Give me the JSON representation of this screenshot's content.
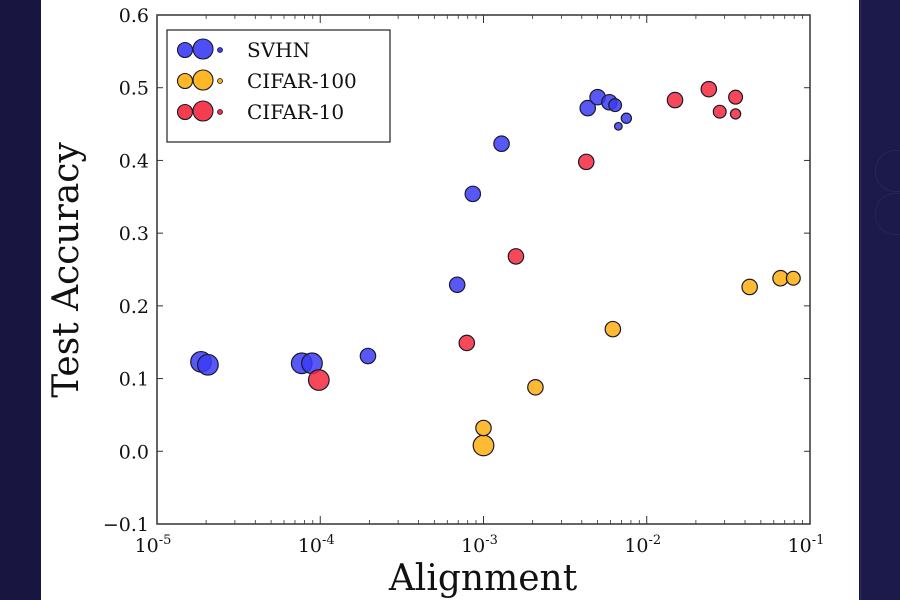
{
  "chart_data": {
    "type": "scatter",
    "title": "",
    "xlabel": "Alignment",
    "ylabel": "Test Accuracy",
    "xscale": "log",
    "xlim": [
      1e-05,
      0.1
    ],
    "ylim": [
      -0.1,
      0.6
    ],
    "x_ticks": [
      {
        "value": 1e-05,
        "base": "10",
        "exp": "-5"
      },
      {
        "value": 0.0001,
        "base": "10",
        "exp": "-4"
      },
      {
        "value": 0.001,
        "base": "10",
        "exp": "-3"
      },
      {
        "value": 0.01,
        "base": "10",
        "exp": "-2"
      },
      {
        "value": 0.1,
        "base": "10",
        "exp": "-1"
      }
    ],
    "y_ticks": [
      {
        "value": -0.1,
        "label": "−0.1"
      },
      {
        "value": 0.0,
        "label": "0.0"
      },
      {
        "value": 0.1,
        "label": "0.1"
      },
      {
        "value": 0.2,
        "label": "0.2"
      },
      {
        "value": 0.3,
        "label": "0.3"
      },
      {
        "value": 0.4,
        "label": "0.4"
      },
      {
        "value": 0.5,
        "label": "0.5"
      },
      {
        "value": 0.6,
        "label": "0.6"
      }
    ],
    "grid": false,
    "legend_position": "top-left",
    "series": [
      {
        "name": "SVHN",
        "color": "#3b3bf5",
        "points": [
          {
            "x": 1.86e-05,
            "y": 0.123,
            "size": 3
          },
          {
            "x": 2.05e-05,
            "y": 0.119,
            "size": 3
          },
          {
            "x": 7.7e-05,
            "y": 0.121,
            "size": 3
          },
          {
            "x": 8.9e-05,
            "y": 0.121,
            "size": 3
          },
          {
            "x": 0.000196,
            "y": 0.131,
            "size": 2
          },
          {
            "x": 0.00069,
            "y": 0.229,
            "size": 2
          },
          {
            "x": 0.00086,
            "y": 0.354,
            "size": 2
          },
          {
            "x": 0.00129,
            "y": 0.423,
            "size": 2
          },
          {
            "x": 0.00435,
            "y": 0.472,
            "size": 2
          },
          {
            "x": 0.005,
            "y": 0.487,
            "size": 2
          },
          {
            "x": 0.0059,
            "y": 0.48,
            "size": 2
          },
          {
            "x": 0.0064,
            "y": 0.476,
            "size": 1.5
          },
          {
            "x": 0.0075,
            "y": 0.458,
            "size": 1
          },
          {
            "x": 0.0067,
            "y": 0.447,
            "size": 0.5
          }
        ]
      },
      {
        "name": "CIFAR-100",
        "color": "#ffae0f",
        "points": [
          {
            "x": 0.001,
            "y": 0.008,
            "size": 3
          },
          {
            "x": 0.001,
            "y": 0.032,
            "size": 2
          },
          {
            "x": 0.00208,
            "y": 0.088,
            "size": 2
          },
          {
            "x": 0.0062,
            "y": 0.168,
            "size": 2
          },
          {
            "x": 0.0427,
            "y": 0.226,
            "size": 2
          },
          {
            "x": 0.066,
            "y": 0.238,
            "size": 2
          },
          {
            "x": 0.079,
            "y": 0.238,
            "size": 1.7
          }
        ]
      },
      {
        "name": "CIFAR-10",
        "color": "#f5283c",
        "points": [
          {
            "x": 9.8e-05,
            "y": 0.098,
            "size": 3
          },
          {
            "x": 0.00079,
            "y": 0.149,
            "size": 2
          },
          {
            "x": 0.00158,
            "y": 0.268,
            "size": 2
          },
          {
            "x": 0.00426,
            "y": 0.398,
            "size": 2
          },
          {
            "x": 0.0149,
            "y": 0.483,
            "size": 2
          },
          {
            "x": 0.024,
            "y": 0.498,
            "size": 2
          },
          {
            "x": 0.028,
            "y": 0.467,
            "size": 1.5
          },
          {
            "x": 0.035,
            "y": 0.487,
            "size": 1.7
          },
          {
            "x": 0.035,
            "y": 0.464,
            "size": 1
          }
        ]
      }
    ]
  }
}
